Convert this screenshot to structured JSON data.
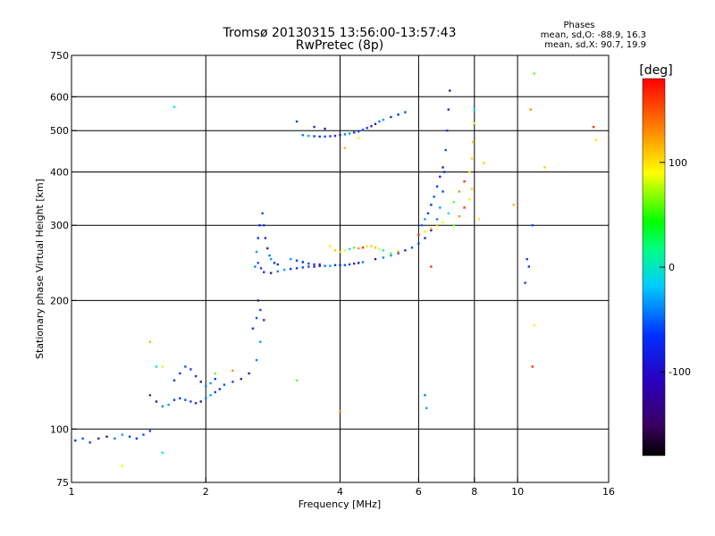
{
  "chart_data": {
    "type": "scatter",
    "title": "Tromsø 20130315 13:56:00-13:57:43",
    "subtitle": "RwPretec (8p)",
    "stats": {
      "heading": "Phases",
      "line_o": "mean, sd,O: -88.9, 16.3",
      "line_x": "mean, sd,X:  90.7, 19.9"
    },
    "xlabel": "Frequency [MHz]",
    "ylabel": "Stationary phase Virtual Height [km]",
    "x_scale": "log2",
    "y_scale": "log",
    "xlim": [
      1,
      16
    ],
    "ylim": [
      75,
      750
    ],
    "x_ticks": [
      1,
      2,
      4,
      6,
      8,
      10,
      16
    ],
    "y_ticks": [
      75,
      100,
      200,
      300,
      400,
      500,
      600,
      750
    ],
    "x_gridlines": [
      2,
      4,
      6,
      8,
      10
    ],
    "y_gridlines": [
      100,
      200,
      300,
      400,
      500,
      600
    ],
    "grid": true,
    "colorbar": {
      "label": "[deg]",
      "ticks": [
        100,
        0,
        -100
      ],
      "range": [
        -180,
        180
      ],
      "colors": [
        "#000000",
        "#5a0090",
        "#0000ff",
        "#00ccff",
        "#00ff00",
        "#ffff00",
        "#ff8000",
        "#ff0000"
      ]
    },
    "series": [
      {
        "name": "O",
        "points": [
          [
            1.02,
            94
          ],
          [
            1.06,
            95
          ],
          [
            1.1,
            93
          ],
          [
            1.15,
            95
          ],
          [
            1.2,
            96
          ],
          [
            1.25,
            95
          ],
          [
            1.3,
            97
          ],
          [
            1.35,
            96
          ],
          [
            1.4,
            95
          ],
          [
            1.45,
            97
          ],
          [
            1.5,
            99
          ],
          [
            1.5,
            120
          ],
          [
            1.55,
            116
          ],
          [
            1.6,
            113
          ],
          [
            1.65,
            114
          ],
          [
            1.7,
            117
          ],
          [
            1.75,
            118
          ],
          [
            1.8,
            117
          ],
          [
            1.85,
            116
          ],
          [
            1.9,
            115
          ],
          [
            1.95,
            116
          ],
          [
            2.0,
            118
          ],
          [
            2.05,
            120
          ],
          [
            2.1,
            122
          ],
          [
            2.15,
            124
          ],
          [
            2.2,
            127
          ],
          [
            2.3,
            129
          ],
          [
            2.4,
            131
          ],
          [
            2.5,
            135
          ],
          [
            2.6,
            145
          ],
          [
            2.65,
            160
          ],
          [
            1.7,
            130
          ],
          [
            1.75,
            135
          ],
          [
            1.8,
            140
          ],
          [
            1.85,
            138
          ],
          [
            1.9,
            133
          ],
          [
            1.95,
            129
          ],
          [
            2.0,
            126
          ],
          [
            2.05,
            128
          ],
          [
            2.1,
            131
          ],
          [
            2.55,
            172
          ],
          [
            2.6,
            182
          ],
          [
            2.65,
            190
          ],
          [
            2.7,
            180
          ],
          [
            2.62,
            200
          ],
          [
            2.58,
            240
          ],
          [
            2.6,
            260
          ],
          [
            2.62,
            280
          ],
          [
            2.64,
            300
          ],
          [
            2.68,
            320
          ],
          [
            2.7,
            300
          ],
          [
            2.72,
            280
          ],
          [
            2.75,
            265
          ],
          [
            2.78,
            255
          ],
          [
            2.8,
            250
          ],
          [
            2.85,
            245
          ],
          [
            2.9,
            243
          ],
          [
            2.62,
            245
          ],
          [
            2.66,
            238
          ],
          [
            2.7,
            233
          ],
          [
            2.8,
            232
          ],
          [
            2.9,
            234
          ],
          [
            3.0,
            236
          ],
          [
            3.1,
            237
          ],
          [
            3.2,
            238
          ],
          [
            3.3,
            239
          ],
          [
            3.4,
            240
          ],
          [
            3.5,
            240
          ],
          [
            3.6,
            241
          ],
          [
            3.7,
            241
          ],
          [
            3.8,
            241
          ],
          [
            3.9,
            242
          ],
          [
            4.0,
            242
          ],
          [
            4.1,
            242
          ],
          [
            4.2,
            243
          ],
          [
            4.3,
            244
          ],
          [
            4.4,
            245
          ],
          [
            4.5,
            246
          ],
          [
            3.1,
            250
          ],
          [
            3.2,
            248
          ],
          [
            3.3,
            246
          ],
          [
            3.4,
            244
          ],
          [
            3.5,
            243
          ],
          [
            3.6,
            243
          ],
          [
            4.8,
            250
          ],
          [
            5.0,
            252
          ],
          [
            5.2,
            255
          ],
          [
            5.4,
            258
          ],
          [
            5.6,
            262
          ],
          [
            5.8,
            266
          ],
          [
            6.0,
            272
          ],
          [
            6.2,
            280
          ],
          [
            6.4,
            292
          ],
          [
            6.6,
            310
          ],
          [
            6.7,
            330
          ],
          [
            6.8,
            360
          ],
          [
            6.85,
            400
          ],
          [
            6.9,
            450
          ],
          [
            6.95,
            500
          ],
          [
            7.0,
            560
          ],
          [
            7.05,
            620
          ],
          [
            6.1,
            300
          ],
          [
            6.2,
            310
          ],
          [
            6.3,
            320
          ],
          [
            6.4,
            335
          ],
          [
            6.5,
            350
          ],
          [
            6.6,
            370
          ],
          [
            6.7,
            390
          ],
          [
            6.8,
            410
          ],
          [
            3.3,
            488
          ],
          [
            3.4,
            486
          ],
          [
            3.5,
            485
          ],
          [
            3.6,
            484
          ],
          [
            3.7,
            484
          ],
          [
            3.8,
            485
          ],
          [
            3.9,
            486
          ],
          [
            4.0,
            488
          ],
          [
            4.1,
            490
          ],
          [
            4.2,
            492
          ],
          [
            4.3,
            495
          ],
          [
            4.4,
            498
          ],
          [
            4.5,
            502
          ],
          [
            4.6,
            507
          ],
          [
            4.7,
            512
          ],
          [
            4.8,
            518
          ],
          [
            4.9,
            525
          ],
          [
            5.0,
            530
          ],
          [
            5.2,
            538
          ],
          [
            5.4,
            545
          ],
          [
            5.6,
            552
          ],
          [
            3.2,
            525
          ],
          [
            3.5,
            510
          ],
          [
            3.7,
            505
          ],
          [
            6.2,
            120
          ],
          [
            6.25,
            112
          ],
          [
            10.5,
            250
          ],
          [
            10.6,
            240
          ],
          [
            10.8,
            300
          ],
          [
            10.4,
            220
          ]
        ]
      },
      {
        "name": "X",
        "points": [
          [
            3.8,
            268
          ],
          [
            3.9,
            262
          ],
          [
            4.0,
            260
          ],
          [
            4.1,
            262
          ],
          [
            4.2,
            264
          ],
          [
            4.3,
            266
          ],
          [
            4.4,
            265
          ],
          [
            4.5,
            266
          ],
          [
            4.6,
            268
          ],
          [
            4.7,
            268
          ],
          [
            4.8,
            266
          ],
          [
            4.9,
            264
          ],
          [
            5.0,
            262
          ],
          [
            5.2,
            258
          ],
          [
            5.4,
            260
          ],
          [
            6.0,
            285
          ],
          [
            6.2,
            290
          ],
          [
            6.4,
            295
          ],
          [
            6.6,
            300
          ],
          [
            6.8,
            305
          ],
          [
            7.0,
            320
          ],
          [
            7.2,
            340
          ],
          [
            7.4,
            360
          ],
          [
            7.6,
            380
          ],
          [
            7.8,
            400
          ],
          [
            7.9,
            430
          ],
          [
            7.95,
            470
          ],
          [
            8.0,
            520
          ],
          [
            8.0,
            560
          ],
          [
            7.2,
            300
          ],
          [
            7.4,
            315
          ],
          [
            7.6,
            330
          ],
          [
            7.8,
            345
          ],
          [
            7.9,
            365
          ],
          [
            4.1,
            455
          ],
          [
            4.4,
            480
          ],
          [
            1.7,
            568
          ],
          [
            10.9,
            680
          ],
          [
            10.7,
            560
          ],
          [
            14.8,
            510
          ],
          [
            15.0,
            475
          ],
          [
            11.5,
            410
          ],
          [
            1.5,
            160
          ],
          [
            1.6,
            140
          ],
          [
            1.55,
            140
          ],
          [
            2.1,
            135
          ],
          [
            2.3,
            137
          ],
          [
            10.8,
            140
          ],
          [
            10.9,
            175
          ],
          [
            8.4,
            420
          ],
          [
            9.8,
            335
          ],
          [
            1.3,
            82
          ],
          [
            1.6,
            88
          ],
          [
            3.2,
            130
          ],
          [
            4.0,
            110
          ],
          [
            6.4,
            240
          ],
          [
            8.2,
            310
          ]
        ]
      }
    ]
  }
}
